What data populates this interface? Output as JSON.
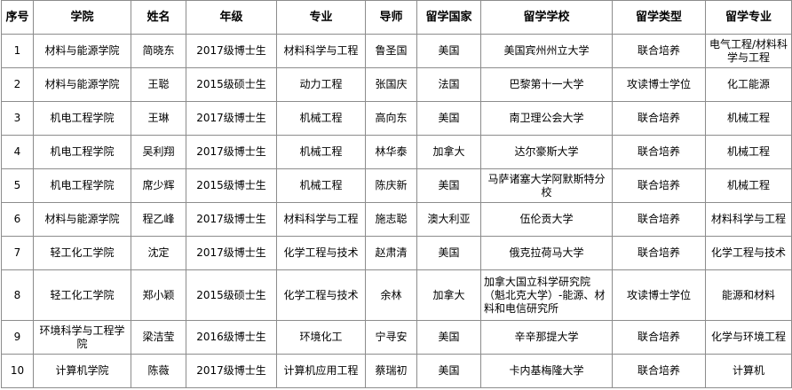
{
  "table": {
    "header": [
      "序号",
      "学院",
      "姓名",
      "年级",
      "专业",
      "导师",
      "留学国家",
      "留学学校",
      "留学类型",
      "留学专业"
    ],
    "rows": [
      [
        1,
        "材料与能源学院",
        "简晓东",
        "2017级博士生",
        "材料科学与工程",
        "鲁圣国",
        "美国",
        "美国宾州州立大学",
        "联合培养",
        "电气工程/材料科学与工程"
      ],
      [
        2,
        "材料与能源学院",
        "王聪",
        "2015级硕士生",
        "动力工程",
        "张国庆",
        "法国",
        "巴黎第十一大学",
        "攻读博士学位",
        "化工能源"
      ],
      [
        3,
        "机电工程学院",
        "王琳",
        "2017级博士生",
        "机械工程",
        "高向东",
        "美国",
        "南卫理公会大学",
        "联合培养",
        "机械工程"
      ],
      [
        4,
        "机电工程学院",
        "吴利翔",
        "2017级博士生",
        "机械工程",
        "林华泰",
        "加拿大",
        "达尔豪斯大学",
        "联合培养",
        "机械工程"
      ],
      [
        5,
        "机电工程学院",
        "席少辉",
        "2015级博士生",
        "机械工程",
        "陈庆新",
        "美国",
        "马萨诸塞大学阿默斯特分校",
        "联合培养",
        "机械工程"
      ],
      [
        6,
        "材料与能源学院",
        "程乙峰",
        "2017级博士生",
        "材料科学与工程",
        "施志聪",
        "澳大利亚",
        "伍伦贡大学",
        "联合培养",
        "材料科学与工程"
      ],
      [
        7,
        "轻工化工学院",
        "沈定",
        "2017级博士生",
        "化学工程与技术",
        "赵肃清",
        "美国",
        "俄克拉荷马大学",
        "联合培养",
        "化学工程与技术"
      ],
      [
        8,
        "轻工化工学院",
        "郑小颖",
        "2015级硕士生",
        "化学工程与技术",
        "余林",
        "加拿大",
        "加拿大国立科学研究院（魁北克大学）-能源、材料和电信研究所",
        "攻读博士学位",
        "能源和材料"
      ],
      [
        9,
        "环境科学与工程学院",
        "梁洁莹",
        "2016级博士生",
        "环境化工",
        "宁寻安",
        "美国",
        "辛辛那提大学",
        "联合培养",
        "化学与环境工程"
      ],
      [
        10,
        "计算机学院",
        "陈薇",
        "2017级博士生",
        "计算机应用工程",
        "蔡瑞初",
        "美国",
        "卡内基梅隆大学",
        "联合培养",
        "计算机"
      ]
    ]
  }
}
